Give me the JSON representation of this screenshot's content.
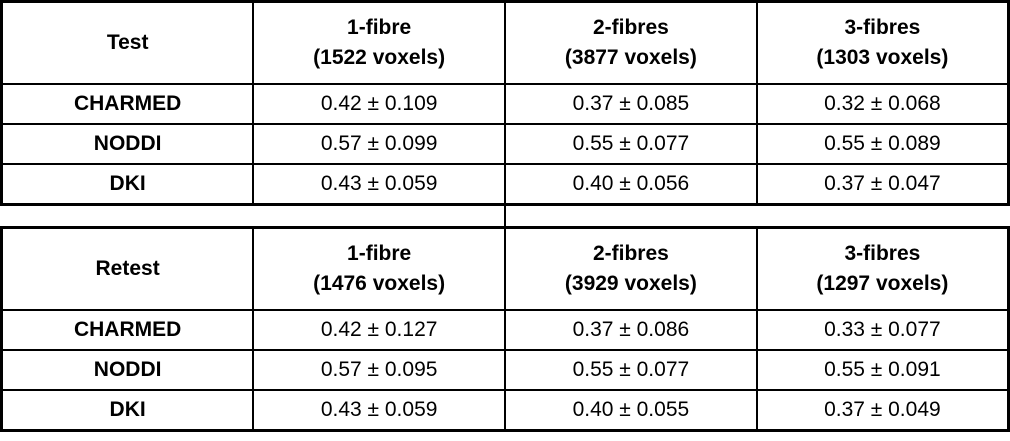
{
  "colors": {
    "border": "#000000",
    "background": "#ffffff",
    "text": "#000000"
  },
  "tables": [
    {
      "title": "Test",
      "columns": [
        {
          "line1": "1-fibre",
          "line2": "(1522 voxels)"
        },
        {
          "line1": "2-fibres",
          "line2": "(3877 voxels)"
        },
        {
          "line1": "3-fibres",
          "line2": "(1303 voxels)"
        }
      ],
      "rows": [
        {
          "label": "CHARMED",
          "values": [
            "0.42 ± 0.109",
            "0.37 ± 0.085",
            "0.32 ± 0.068"
          ]
        },
        {
          "label": "NODDI",
          "values": [
            "0.57 ± 0.099",
            "0.55 ± 0.077",
            "0.55 ± 0.089"
          ]
        },
        {
          "label": "DKI",
          "values": [
            "0.43 ± 0.059",
            "0.40 ± 0.056",
            "0.37 ± 0.047"
          ]
        }
      ]
    },
    {
      "title": "Retest",
      "columns": [
        {
          "line1": "1-fibre",
          "line2": "(1476 voxels)"
        },
        {
          "line1": "2-fibres",
          "line2": "(3929 voxels)"
        },
        {
          "line1": "3-fibres",
          "line2": "(1297 voxels)"
        }
      ],
      "rows": [
        {
          "label": "CHARMED",
          "values": [
            "0.42 ± 0.127",
            "0.37 ± 0.086",
            "0.33 ± 0.077"
          ]
        },
        {
          "label": "NODDI",
          "values": [
            "0.57 ± 0.095",
            "0.55 ± 0.077",
            "0.55 ± 0.091"
          ]
        },
        {
          "label": "DKI",
          "values": [
            "0.43 ± 0.059",
            "0.40 ± 0.055",
            "0.37 ± 0.049"
          ]
        }
      ]
    }
  ]
}
